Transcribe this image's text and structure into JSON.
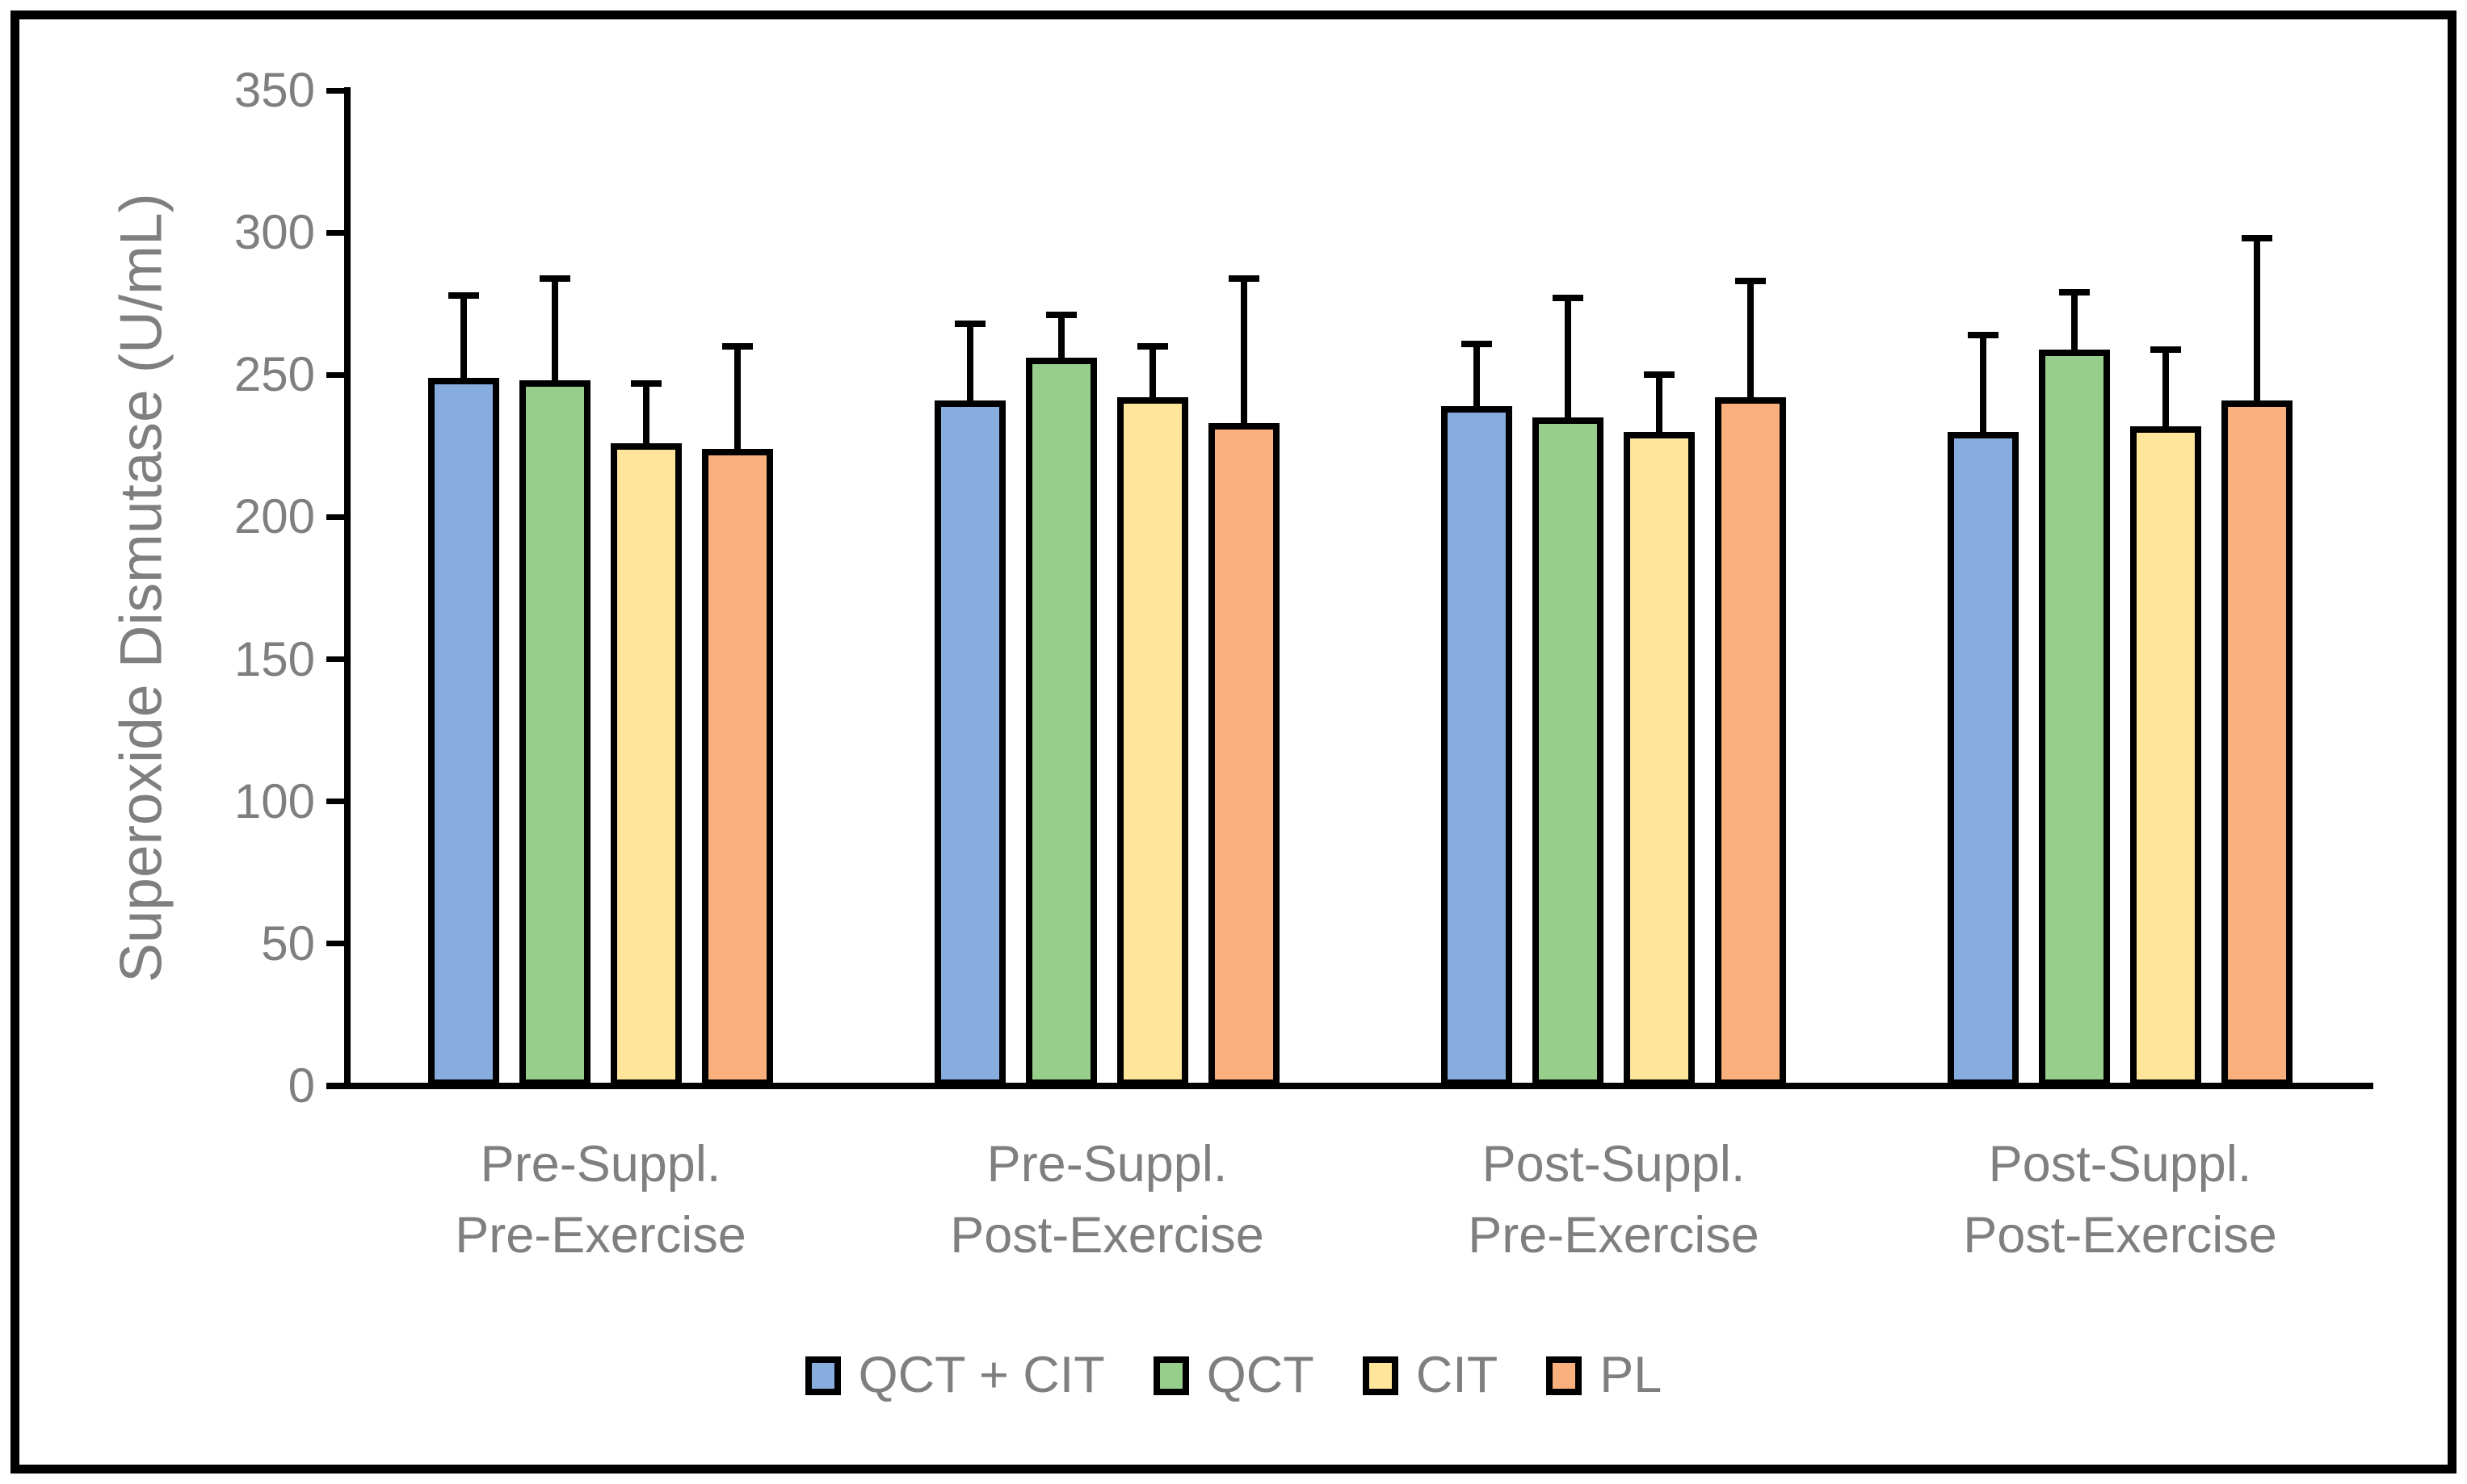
{
  "figure": {
    "background": "#ffffff",
    "frame_color": "#000000",
    "text_color": "#7f7f7f",
    "axis_color": "#000000"
  },
  "chart_data": {
    "type": "bar",
    "title": "",
    "xlabel": "",
    "ylabel": "Superoxide Dismutase (U/mL)",
    "ylim": [
      0,
      350
    ],
    "ytick_step": 50,
    "ytick_labels": [
      "0",
      "50",
      "100",
      "150",
      "200",
      "250",
      "300",
      "350"
    ],
    "grid": false,
    "legend_position": "bottom",
    "error_bars": "upper_only",
    "categories": [
      "Pre-Suppl.\nPre-Exercise",
      "Pre-Suppl.\nPost-Exercise",
      "Post-Suppl.\nPre-Exercise",
      "Post-Suppl.\nPost-Exercise"
    ],
    "series": [
      {
        "name": "QCT + CIT",
        "color": "#87ACDE",
        "values": [
          249,
          241,
          239,
          230
        ],
        "error_plus": [
          29,
          27,
          22,
          34
        ]
      },
      {
        "name": "QCT",
        "color": "#98CE8C",
        "values": [
          248,
          256,
          235,
          259
        ],
        "error_plus": [
          36,
          15,
          42,
          20
        ]
      },
      {
        "name": "CIT",
        "color": "#FFE59A",
        "values": [
          226,
          242,
          230,
          232
        ],
        "error_plus": [
          21,
          18,
          20,
          27
        ]
      },
      {
        "name": "PL",
        "color": "#FAB07D",
        "values": [
          224,
          233,
          242,
          241
        ],
        "error_plus": [
          36,
          51,
          41,
          57
        ]
      }
    ]
  }
}
